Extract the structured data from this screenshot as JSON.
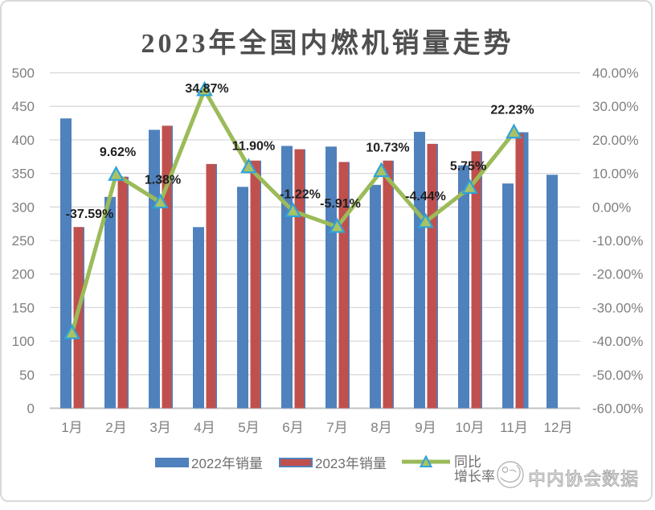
{
  "title": "2023年全国内燃机销量走势",
  "watermark": {
    "text": "中内协会数据"
  },
  "chart_data": {
    "type": "combo-bar-line",
    "categories": [
      "1月",
      "2月",
      "3月",
      "4月",
      "5月",
      "6月",
      "7月",
      "8月",
      "9月",
      "10月",
      "11月",
      "12月"
    ],
    "series": [
      {
        "name": "2022年销量",
        "type": "bar",
        "color": "#4F81BD",
        "values": [
          432,
          315,
          415,
          270,
          330,
          391,
          390,
          333,
          412,
          362,
          335,
          348
        ]
      },
      {
        "name": "2023年销量",
        "type": "bar",
        "color": "#C0504D",
        "border_color": "#4F81BD",
        "values": [
          270,
          345,
          421,
          364,
          369,
          386,
          367,
          369,
          394,
          383,
          409,
          null
        ]
      },
      {
        "name": "同比增长率",
        "type": "line",
        "color": "#9BBB59",
        "marker_fill": "#A9C364",
        "marker_stroke": "#2FA3DC",
        "values_pct": [
          -37.59,
          9.62,
          1.38,
          34.87,
          11.9,
          -1.22,
          -5.91,
          10.73,
          -4.44,
          5.75,
          22.23,
          null
        ]
      }
    ],
    "point_labels": [
      "-37.59%",
      "9.62%",
      "1.38%",
      "34.87%",
      "11.90%",
      "-1.22%",
      "-5.91%",
      "10.73%",
      "-4.44%",
      "5.75%",
      "22.23%"
    ],
    "left_axis": {
      "min": 0,
      "max": 500,
      "step": 50,
      "ticks": [
        "0",
        "50",
        "100",
        "150",
        "200",
        "250",
        "300",
        "350",
        "400",
        "450",
        "500"
      ]
    },
    "right_axis": {
      "min": -60,
      "max": 40,
      "step": 10,
      "ticks": [
        "-60.00%",
        "-50.00%",
        "-40.00%",
        "-30.00%",
        "-20.00%",
        "-10.00%",
        "0.00%",
        "10.00%",
        "20.00%",
        "30.00%",
        "40.00%"
      ]
    },
    "legend": [
      {
        "label": "2022年销量"
      },
      {
        "label": "2023年销量"
      },
      {
        "label_lines": [
          "同比",
          "增长率"
        ]
      }
    ]
  }
}
